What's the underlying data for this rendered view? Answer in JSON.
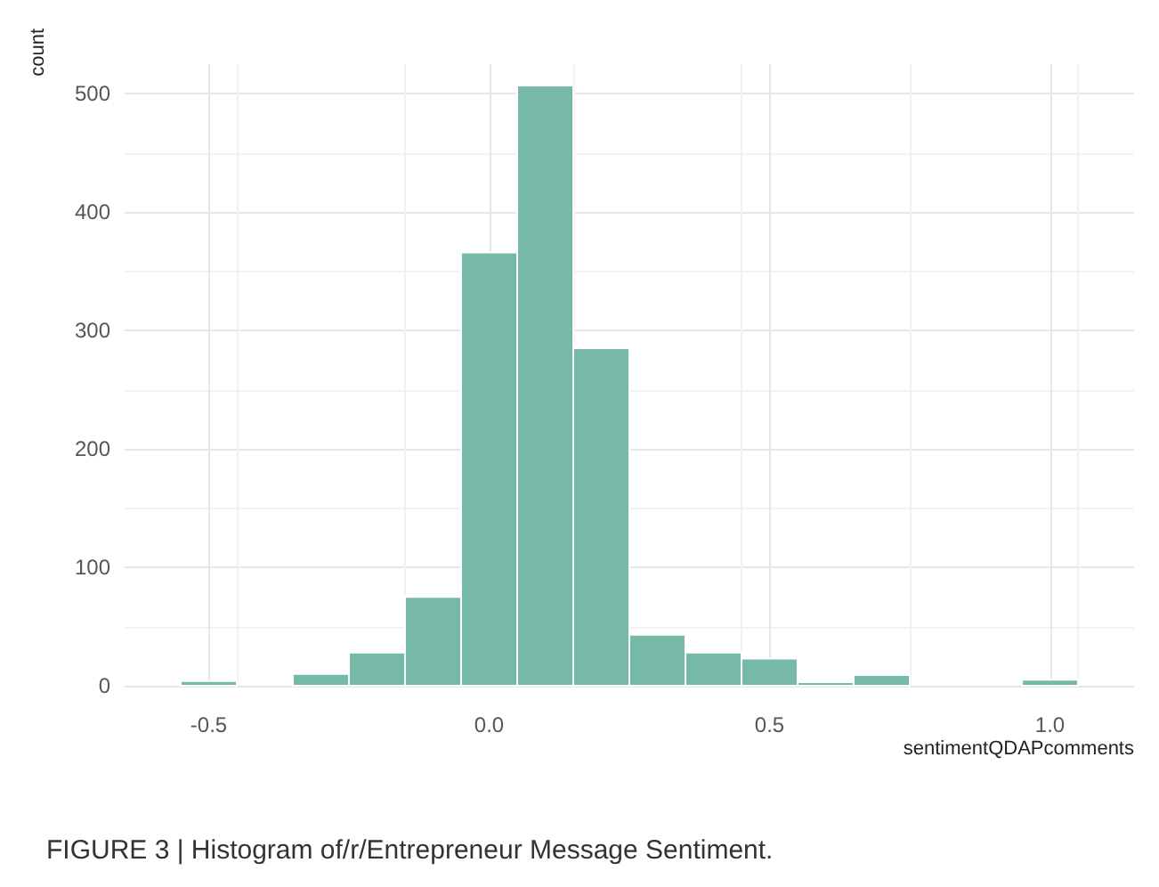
{
  "chart_data": {
    "type": "histogram",
    "bins": [
      -0.55,
      -0.45,
      -0.35,
      -0.25,
      -0.15,
      -0.05,
      0.05,
      0.15,
      0.25,
      0.35,
      0.45,
      0.55,
      0.65,
      0.75,
      0.85,
      0.95,
      1.05
    ],
    "values": [
      4,
      0,
      10,
      28,
      75,
      366,
      507,
      285,
      43,
      28,
      23,
      3,
      9,
      0,
      0,
      5
    ],
    "color": "#76b9a9",
    "xlabel": "sentimentQDAPcomments",
    "ylabel": "count",
    "xlim": [
      -0.65,
      1.15
    ],
    "xticks": [
      {
        "value": -0.5,
        "label": "-0.5"
      },
      {
        "value": 0,
        "label": "0.0"
      },
      {
        "value": 0.5,
        "label": "0.5"
      },
      {
        "value": 1,
        "label": "1.0"
      }
    ],
    "ylim": [
      0,
      525
    ],
    "yticks": [
      0,
      100,
      200,
      300,
      400,
      500
    ],
    "grid": true,
    "annotations": [
      "FIGURE 3 | Histogram of/r/Entrepreneur Message Sentiment."
    ]
  }
}
